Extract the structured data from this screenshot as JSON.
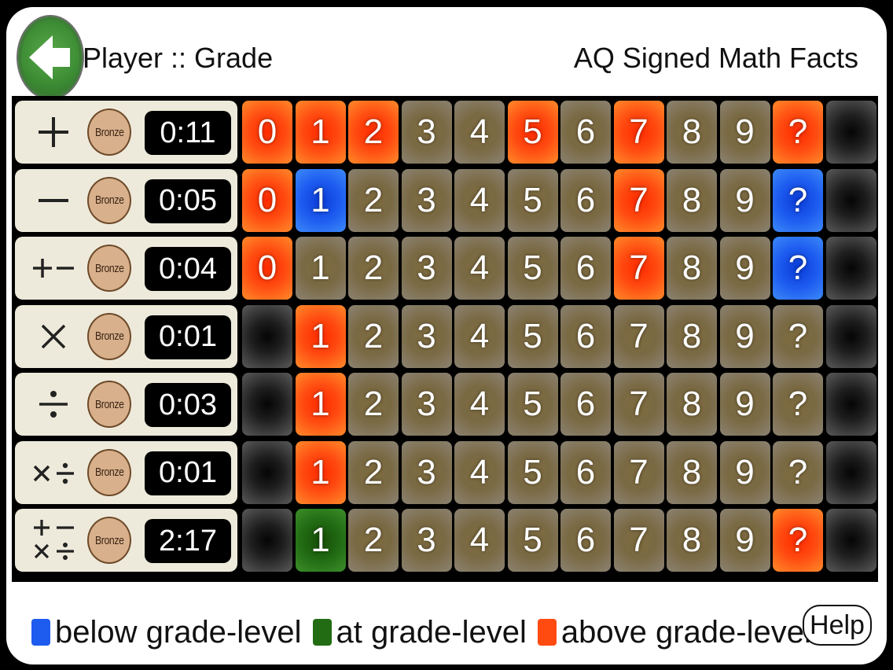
{
  "header": {
    "player_label": "Player :: Grade",
    "app_title": "AQ Signed Math Facts"
  },
  "colors": {
    "below": "#1e5cf0",
    "at": "#226c14",
    "above": "#ff4a10",
    "neutral": "#7a6a44",
    "empty": "#1e1e1e"
  },
  "rows": [
    {
      "op": "plus",
      "op_text": "+",
      "medal": "Bronze",
      "time": "0:11",
      "cells": [
        [
          "0",
          "o"
        ],
        [
          "1",
          "o"
        ],
        [
          "2",
          "o"
        ],
        [
          "3",
          "n"
        ],
        [
          "4",
          "n"
        ],
        [
          "5",
          "o"
        ],
        [
          "6",
          "n"
        ],
        [
          "7",
          "o"
        ],
        [
          "8",
          "n"
        ],
        [
          "9",
          "n"
        ],
        [
          "?",
          "o"
        ],
        [
          "",
          "k"
        ]
      ]
    },
    {
      "op": "minus",
      "op_text": "−",
      "medal": "Bronze",
      "time": "0:05",
      "cells": [
        [
          "0",
          "o"
        ],
        [
          "1",
          "b"
        ],
        [
          "2",
          "n"
        ],
        [
          "3",
          "n"
        ],
        [
          "4",
          "n"
        ],
        [
          "5",
          "n"
        ],
        [
          "6",
          "n"
        ],
        [
          "7",
          "o"
        ],
        [
          "8",
          "n"
        ],
        [
          "9",
          "n"
        ],
        [
          "?",
          "b"
        ],
        [
          "",
          "k"
        ]
      ]
    },
    {
      "op": "plus-minus",
      "op_text": "+−",
      "medal": "Bronze",
      "time": "0:04",
      "cells": [
        [
          "0",
          "o"
        ],
        [
          "1",
          "n"
        ],
        [
          "2",
          "n"
        ],
        [
          "3",
          "n"
        ],
        [
          "4",
          "n"
        ],
        [
          "5",
          "n"
        ],
        [
          "6",
          "n"
        ],
        [
          "7",
          "o"
        ],
        [
          "8",
          "n"
        ],
        [
          "9",
          "n"
        ],
        [
          "?",
          "b"
        ],
        [
          "",
          "k"
        ]
      ]
    },
    {
      "op": "times",
      "op_text": "×",
      "medal": "Bronze",
      "time": "0:01",
      "cells": [
        [
          "",
          "k"
        ],
        [
          "1",
          "o"
        ],
        [
          "2",
          "n"
        ],
        [
          "3",
          "n"
        ],
        [
          "4",
          "n"
        ],
        [
          "5",
          "n"
        ],
        [
          "6",
          "n"
        ],
        [
          "7",
          "n"
        ],
        [
          "8",
          "n"
        ],
        [
          "9",
          "n"
        ],
        [
          "?",
          "n"
        ],
        [
          "",
          "k"
        ]
      ]
    },
    {
      "op": "divide",
      "op_text": "÷",
      "medal": "Bronze",
      "time": "0:03",
      "cells": [
        [
          "",
          "k"
        ],
        [
          "1",
          "o"
        ],
        [
          "2",
          "n"
        ],
        [
          "3",
          "n"
        ],
        [
          "4",
          "n"
        ],
        [
          "5",
          "n"
        ],
        [
          "6",
          "n"
        ],
        [
          "7",
          "n"
        ],
        [
          "8",
          "n"
        ],
        [
          "9",
          "n"
        ],
        [
          "?",
          "n"
        ],
        [
          "",
          "k"
        ]
      ]
    },
    {
      "op": "times-divide",
      "op_text": "×÷",
      "medal": "Bronze",
      "time": "0:01",
      "cells": [
        [
          "",
          "k"
        ],
        [
          "1",
          "o"
        ],
        [
          "2",
          "n"
        ],
        [
          "3",
          "n"
        ],
        [
          "4",
          "n"
        ],
        [
          "5",
          "n"
        ],
        [
          "6",
          "n"
        ],
        [
          "7",
          "n"
        ],
        [
          "8",
          "n"
        ],
        [
          "9",
          "n"
        ],
        [
          "?",
          "n"
        ],
        [
          "",
          "k"
        ]
      ]
    },
    {
      "op": "all-operations",
      "op_text": "+−×÷",
      "medal": "Bronze",
      "time": "2:17",
      "cells": [
        [
          "",
          "k"
        ],
        [
          "1",
          "g"
        ],
        [
          "2",
          "n"
        ],
        [
          "3",
          "n"
        ],
        [
          "4",
          "n"
        ],
        [
          "5",
          "n"
        ],
        [
          "6",
          "n"
        ],
        [
          "7",
          "n"
        ],
        [
          "8",
          "n"
        ],
        [
          "9",
          "n"
        ],
        [
          "?",
          "o"
        ],
        [
          "",
          "k"
        ]
      ]
    }
  ],
  "legend": {
    "below": "below grade-level",
    "at": "at grade-level",
    "above": "above grade-level"
  },
  "help_label": "Help",
  "icons": {
    "back": "back-arrow-icon"
  }
}
